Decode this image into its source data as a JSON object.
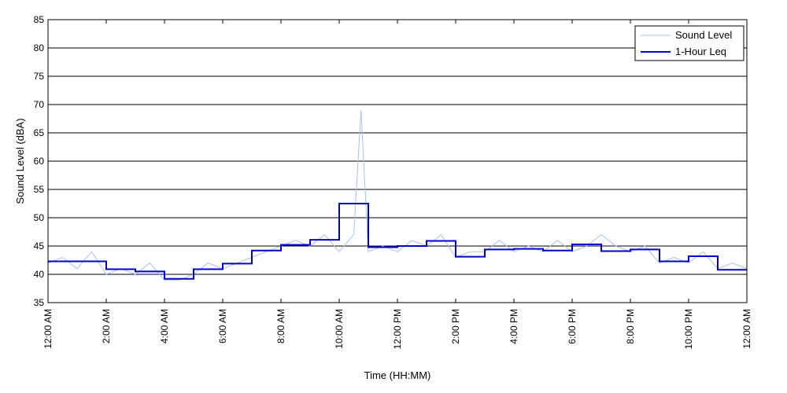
{
  "chart_data": {
    "type": "line",
    "title": "",
    "xlabel": "Time (HH:MM)",
    "ylabel": "Sound Level (dBA)",
    "xlim": [
      0,
      24
    ],
    "ylim": [
      35,
      85
    ],
    "x_unit": "hours after 12:00 AM",
    "y_ticks": [
      35,
      40,
      45,
      50,
      55,
      60,
      65,
      70,
      75,
      80,
      85
    ],
    "x_ticks": [
      {
        "x": 0,
        "label": "12:00 AM"
      },
      {
        "x": 2,
        "label": "2:00 AM"
      },
      {
        "x": 4,
        "label": "4:00 AM"
      },
      {
        "x": 6,
        "label": "6:00 AM"
      },
      {
        "x": 8,
        "label": "8:00 AM"
      },
      {
        "x": 10,
        "label": "10:00 AM"
      },
      {
        "x": 12,
        "label": "12:00 PM"
      },
      {
        "x": 14,
        "label": "2:00 PM"
      },
      {
        "x": 16,
        "label": "4:00 PM"
      },
      {
        "x": 18,
        "label": "6:00 PM"
      },
      {
        "x": 20,
        "label": "8:00 PM"
      },
      {
        "x": 22,
        "label": "10:00 PM"
      },
      {
        "x": 24,
        "label": "12:00 AM"
      }
    ],
    "grid": "horizontal",
    "legend_position": "top-right",
    "series": [
      {
        "name": "Sound Level",
        "color": "#a8c0f0",
        "x": [
          0,
          0.5,
          1,
          1.5,
          2,
          2.5,
          3,
          3.5,
          4,
          4.5,
          5,
          5.5,
          6,
          6.5,
          7,
          7.5,
          8,
          8.5,
          9,
          9.5,
          10,
          10.5,
          10.75,
          11,
          11.5,
          12,
          12.5,
          13,
          13.5,
          14,
          14.5,
          15,
          15.5,
          16,
          16.5,
          17,
          17.5,
          18,
          18.5,
          19,
          19.5,
          20,
          20.5,
          21,
          21.5,
          22,
          22.5,
          23,
          23.5,
          24
        ],
        "values": [
          42,
          43,
          41,
          44,
          40,
          41,
          40,
          42,
          39,
          39,
          40,
          42,
          41,
          42,
          43,
          44,
          45,
          46,
          45,
          47,
          44,
          47,
          69,
          44,
          45,
          44,
          46,
          45,
          47,
          43,
          44,
          44,
          46,
          44,
          45,
          44,
          46,
          44,
          45,
          47,
          45,
          44,
          45,
          42,
          43,
          42,
          44,
          41,
          42,
          41
        ]
      },
      {
        "name": "1-Hour Leq",
        "color": "#0000cc",
        "step": true,
        "x": [
          0,
          1,
          2,
          3,
          4,
          5,
          6,
          7,
          8,
          9,
          10,
          11,
          12,
          13,
          14,
          15,
          16,
          17,
          18,
          19,
          20,
          21,
          22,
          23,
          24
        ],
        "values": [
          42.3,
          42.3,
          40.9,
          40.5,
          39.2,
          40.9,
          41.9,
          44.2,
          45.2,
          46.1,
          52.5,
          44.8,
          45,
          45.9,
          43.1,
          44.4,
          44.5,
          44.2,
          45.3,
          44.1,
          44.4,
          42.3,
          43.2,
          40.8,
          40.8
        ]
      }
    ]
  }
}
